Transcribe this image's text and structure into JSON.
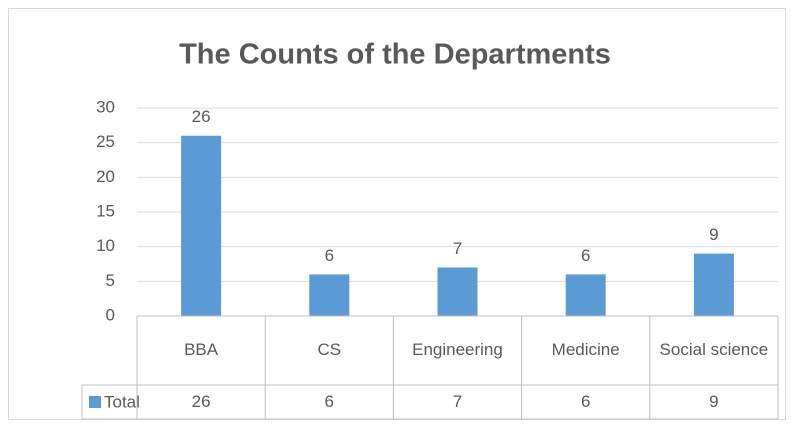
{
  "chart_data": {
    "type": "bar",
    "title": "The Counts of the Departments",
    "categories": [
      "BBA",
      "CS",
      "Engineering",
      "Medicine",
      "Social science"
    ],
    "series": [
      {
        "name": "Total",
        "color": "#5b9bd5",
        "values": [
          26,
          6,
          7,
          6,
          9
        ]
      }
    ],
    "ylim": [
      0,
      30
    ],
    "yticks": [
      0,
      5,
      10,
      15,
      20,
      25,
      30
    ],
    "grid": true,
    "data_table": true
  }
}
